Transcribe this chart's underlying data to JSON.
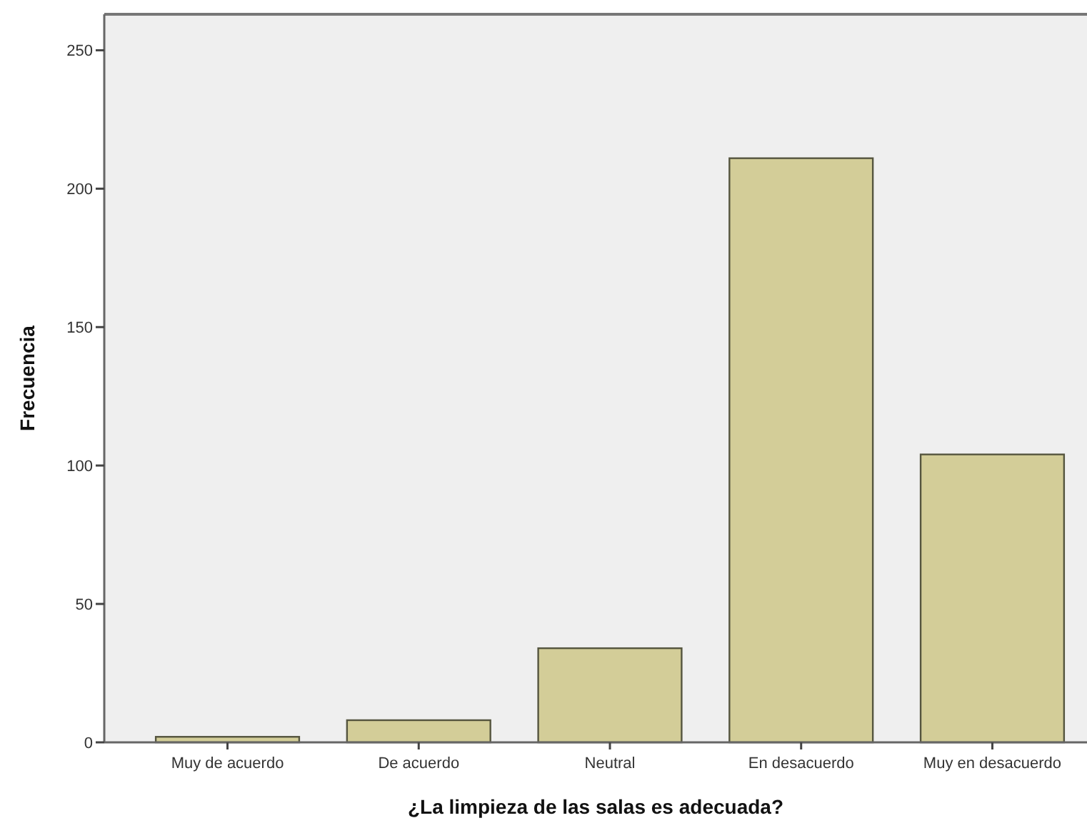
{
  "chart_data": {
    "type": "bar",
    "xlabel": "¿La limpieza de las salas es adecuada?",
    "ylabel": "Frecuencia",
    "categories": [
      "Muy de acuerdo",
      "De acuerdo",
      "Neutral",
      "En desacuerdo",
      "Muy en desacuerdo"
    ],
    "values": [
      2,
      8,
      34,
      211,
      104
    ],
    "color": "#d3cd98",
    "ylim": [
      0,
      263
    ],
    "yticks": [
      0,
      50,
      100,
      150,
      200,
      250
    ],
    "grid": false
  }
}
